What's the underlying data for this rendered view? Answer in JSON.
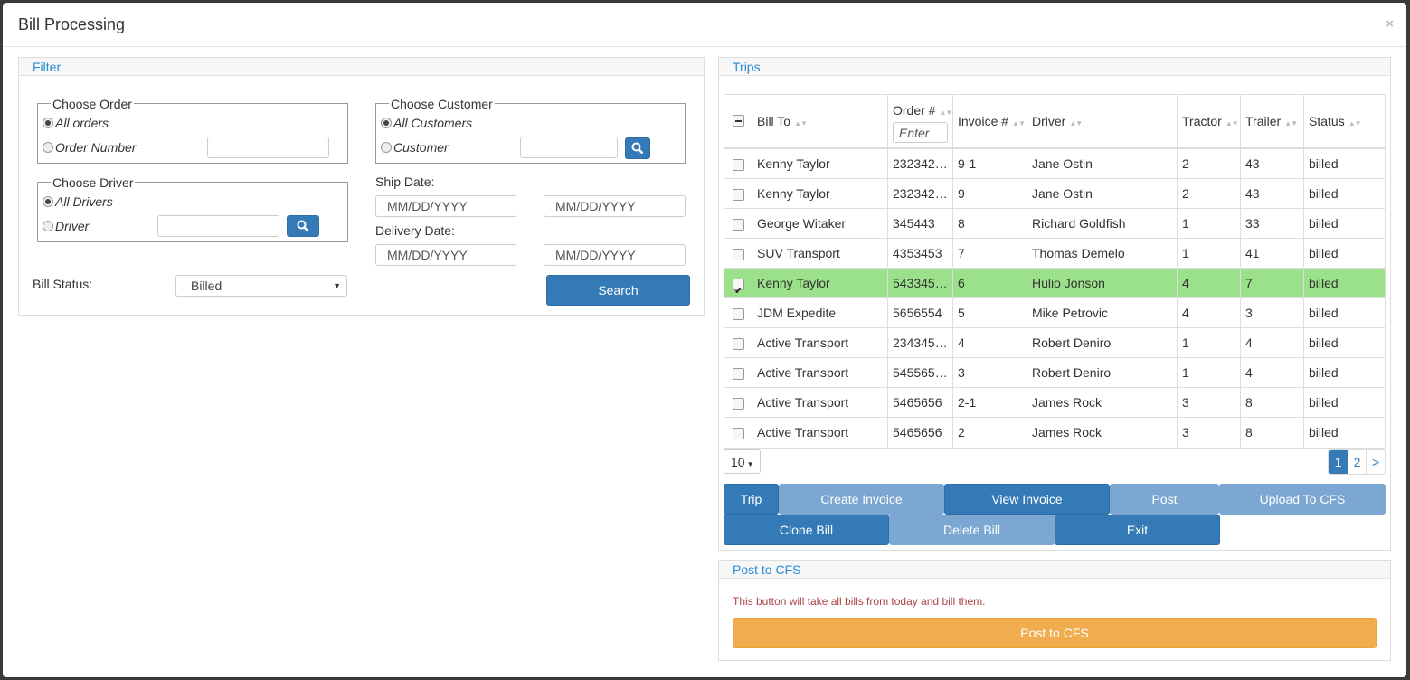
{
  "modal": {
    "title": "Bill Processing",
    "close_glyph": "×"
  },
  "filter": {
    "title": "Filter",
    "choose_order": {
      "legend": "Choose Order",
      "all_label": "All orders",
      "single_label": "Order Number",
      "value": ""
    },
    "choose_driver": {
      "legend": "Choose Driver",
      "all_label": "All Drivers",
      "single_label": "Driver",
      "value": ""
    },
    "choose_customer": {
      "legend": "Choose Customer",
      "all_label": "All Customers",
      "single_label": "Customer",
      "value": ""
    },
    "ship_date": {
      "label": "Ship Date:",
      "from_placeholder": "MM/DD/YYYY",
      "to_placeholder": "MM/DD/YYYY"
    },
    "delivery_date": {
      "label": "Delivery Date:",
      "from_placeholder": "MM/DD/YYYY",
      "to_placeholder": "MM/DD/YYYY"
    },
    "bill_status": {
      "label": "Bill Status:",
      "value": "Billed"
    },
    "search_label": "Search"
  },
  "trips": {
    "title": "Trips",
    "columns": {
      "bill_to": "Bill To",
      "order": "Order #",
      "order_filter_placeholder": "Enter",
      "invoice": "Invoice #",
      "driver": "Driver",
      "tractor": "Tractor",
      "trailer": "Trailer",
      "status": "Status"
    },
    "rows": [
      {
        "bill_to": "Kenny Taylor",
        "order": "232342…",
        "invoice": "9-1",
        "driver": "Jane Ostin",
        "tractor": "2",
        "trailer": "43",
        "status": "billed",
        "checked": false
      },
      {
        "bill_to": "Kenny Taylor",
        "order": "232342…",
        "invoice": "9",
        "driver": "Jane Ostin",
        "tractor": "2",
        "trailer": "43",
        "status": "billed",
        "checked": false
      },
      {
        "bill_to": "George Witaker",
        "order": "345443",
        "invoice": "8",
        "driver": "Richard Goldfish",
        "tractor": "1",
        "trailer": "33",
        "status": "billed",
        "checked": false
      },
      {
        "bill_to": "SUV Transport",
        "order": "4353453",
        "invoice": "7",
        "driver": "Thomas Demelo",
        "tractor": "1",
        "trailer": "41",
        "status": "billed",
        "checked": false
      },
      {
        "bill_to": "Kenny Taylor",
        "order": "543345…",
        "invoice": "6",
        "driver": "Hulio Jonson",
        "tractor": "4",
        "trailer": "7",
        "status": "billed",
        "checked": true
      },
      {
        "bill_to": "JDM Expedite",
        "order": "5656554",
        "invoice": "5",
        "driver": "Mike Petrovic",
        "tractor": "4",
        "trailer": "3",
        "status": "billed",
        "checked": false
      },
      {
        "bill_to": "Active Transport",
        "order": "234345…",
        "invoice": "4",
        "driver": "Robert Deniro",
        "tractor": "1",
        "trailer": "4",
        "status": "billed",
        "checked": false
      },
      {
        "bill_to": "Active Transport",
        "order": "545565…",
        "invoice": "3",
        "driver": "Robert Deniro",
        "tractor": "1",
        "trailer": "4",
        "status": "billed",
        "checked": false
      },
      {
        "bill_to": "Active Transport",
        "order": "5465656",
        "invoice": "2-1",
        "driver": "James Rock",
        "tractor": "3",
        "trailer": "8",
        "status": "billed",
        "checked": false
      },
      {
        "bill_to": "Active Transport",
        "order": "5465656",
        "invoice": "2",
        "driver": "James Rock",
        "tractor": "3",
        "trailer": "8",
        "status": "billed",
        "checked": false
      }
    ],
    "page_size": "10",
    "pages": [
      "1",
      "2",
      ">"
    ],
    "current_page": "1",
    "buttons": {
      "trip": "Trip",
      "create_invoice": "Create Invoice",
      "view_invoice": "View Invoice",
      "post": "Post",
      "upload_cfs": "Upload To CFS",
      "clone_bill": "Clone Bill",
      "delete_bill": "Delete Bill",
      "exit": "Exit"
    }
  },
  "post_cfs": {
    "title": "Post to CFS",
    "note": "This button will take all bills from today and bill them.",
    "button": "Post to CFS"
  },
  "colors": {
    "primary": "#337ab7",
    "primary_disabled": "#7ba7d2",
    "selected_row": "#9be08a",
    "warning": "#f0ad4e",
    "panel_title": "#2a8dd4",
    "note_text": "#a94442"
  }
}
